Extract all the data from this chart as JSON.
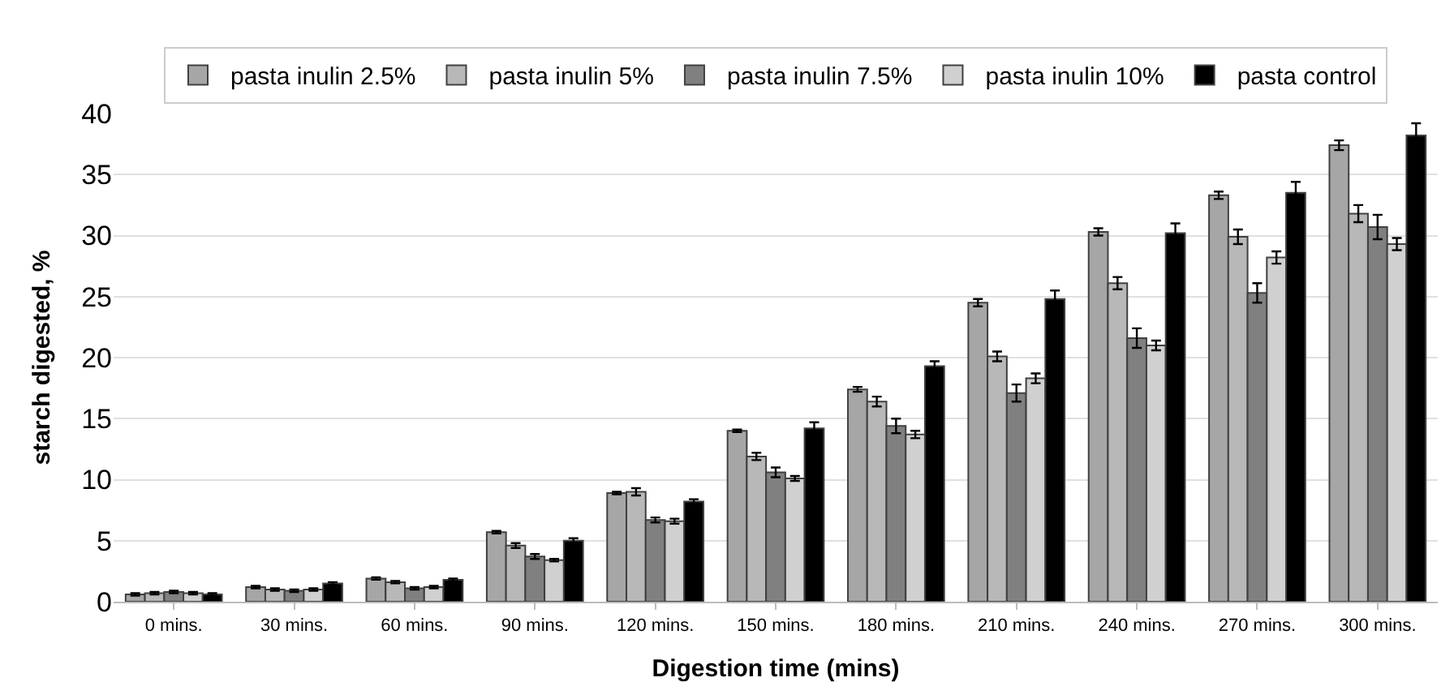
{
  "chart_data": {
    "type": "bar",
    "xlabel": "Digestion time (mins)",
    "ylabel": "starch digested, %",
    "categories": [
      "0 mins.",
      "30 mins.",
      "60 mins.",
      "90 mins.",
      "120 mins.",
      "150 mins.",
      "180 mins.",
      "210 mins.",
      "240 mins.",
      "270 mins.",
      "300 mins."
    ],
    "series": [
      {
        "name": "pasta inulin 2.5%",
        "color": "#a6a6a6",
        "values": [
          0.6,
          1.2,
          1.9,
          5.7,
          8.9,
          14.0,
          17.4,
          24.5,
          30.3,
          33.3,
          37.4
        ],
        "errors": [
          0.1,
          0.1,
          0.1,
          0.1,
          0.1,
          0.1,
          0.2,
          0.3,
          0.3,
          0.3,
          0.4
        ]
      },
      {
        "name": "pasta inulin 5%",
        "color": "#b8b8b8",
        "values": [
          0.7,
          1.0,
          1.6,
          4.6,
          9.0,
          11.9,
          16.4,
          20.1,
          26.1,
          29.9,
          31.8
        ],
        "errors": [
          0.1,
          0.1,
          0.1,
          0.2,
          0.3,
          0.3,
          0.4,
          0.4,
          0.5,
          0.6,
          0.7
        ]
      },
      {
        "name": "pasta inulin 7.5%",
        "color": "#808080",
        "values": [
          0.8,
          0.9,
          1.1,
          3.7,
          6.7,
          10.6,
          14.4,
          17.1,
          21.6,
          25.3,
          30.7
        ],
        "errors": [
          0.1,
          0.1,
          0.1,
          0.2,
          0.2,
          0.4,
          0.6,
          0.7,
          0.8,
          0.8,
          1.0
        ]
      },
      {
        "name": "pasta inulin 10%",
        "color": "#d0d0d0",
        "values": [
          0.7,
          1.0,
          1.2,
          3.4,
          6.6,
          10.1,
          13.7,
          18.3,
          21.0,
          28.2,
          29.3
        ],
        "errors": [
          0.1,
          0.1,
          0.1,
          0.1,
          0.2,
          0.2,
          0.3,
          0.4,
          0.4,
          0.5,
          0.5
        ]
      },
      {
        "name": "pasta control",
        "color": "#000000",
        "values": [
          0.6,
          1.5,
          1.8,
          5.0,
          8.2,
          14.2,
          19.3,
          24.8,
          30.2,
          33.5,
          38.2
        ],
        "errors": [
          0.1,
          0.1,
          0.1,
          0.2,
          0.2,
          0.5,
          0.4,
          0.7,
          0.8,
          0.9,
          1.0
        ]
      }
    ],
    "ylim": [
      0,
      40
    ],
    "yticks": [
      0,
      5,
      10,
      15,
      20,
      25,
      30,
      35,
      40
    ],
    "grid": "y",
    "legend": "top"
  }
}
